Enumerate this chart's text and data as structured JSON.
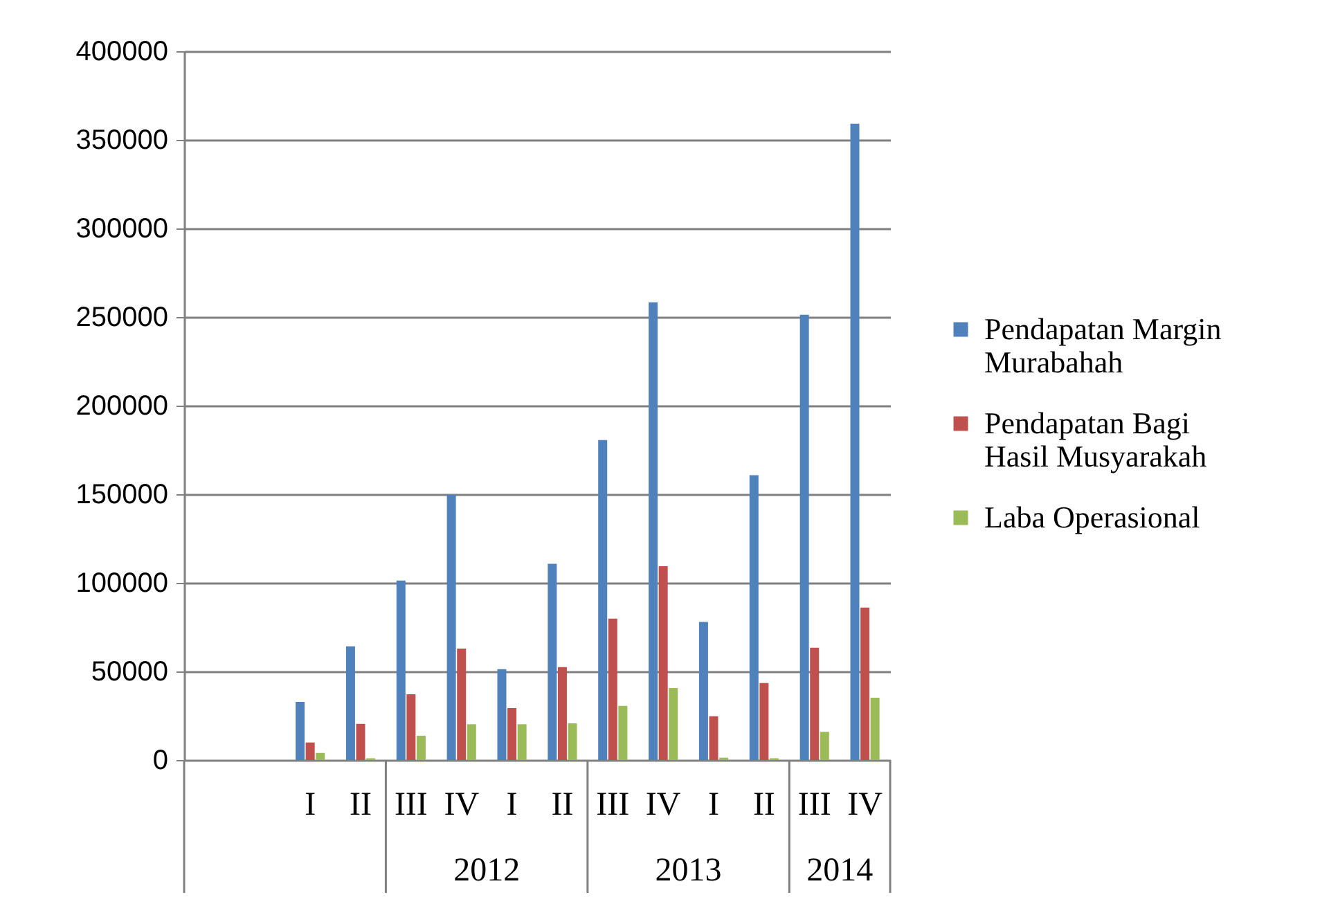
{
  "chart_data": {
    "type": "bar",
    "categories": [
      null,
      null,
      "I",
      "II",
      "III",
      "IV",
      "I",
      "II",
      "III",
      "IV",
      "I",
      "II",
      "III",
      "IV"
    ],
    "series": [
      {
        "name": "Pendapatan Margin Murabahah",
        "color": "#4f81bd",
        "values": [
          null,
          null,
          32800,
          64200,
          101300,
          149700,
          51300,
          110700,
          180600,
          258300,
          77900,
          160700,
          251300,
          359100
        ]
      },
      {
        "name": "Pendapatan Bagi Hasil Musyarakah",
        "color": "#c0504d",
        "values": [
          null,
          null,
          9900,
          20400,
          37100,
          62900,
          29300,
          52400,
          79800,
          109400,
          24700,
          43500,
          63400,
          86000
        ]
      },
      {
        "name": "Laba Operasional",
        "color": "#9bbb59",
        "values": [
          null,
          null,
          4000,
          1000,
          13700,
          20200,
          20200,
          20700,
          30600,
          40600,
          1300,
          1000,
          15900,
          35200
        ]
      }
    ],
    "annotations": [
      "2012",
      "2013",
      "2014"
    ],
    "ylim": [
      0,
      400000
    ],
    "yticks": [
      0,
      50000,
      100000,
      150000,
      200000,
      250000,
      300000,
      350000,
      400000
    ],
    "grid": "y",
    "legend": "right"
  }
}
